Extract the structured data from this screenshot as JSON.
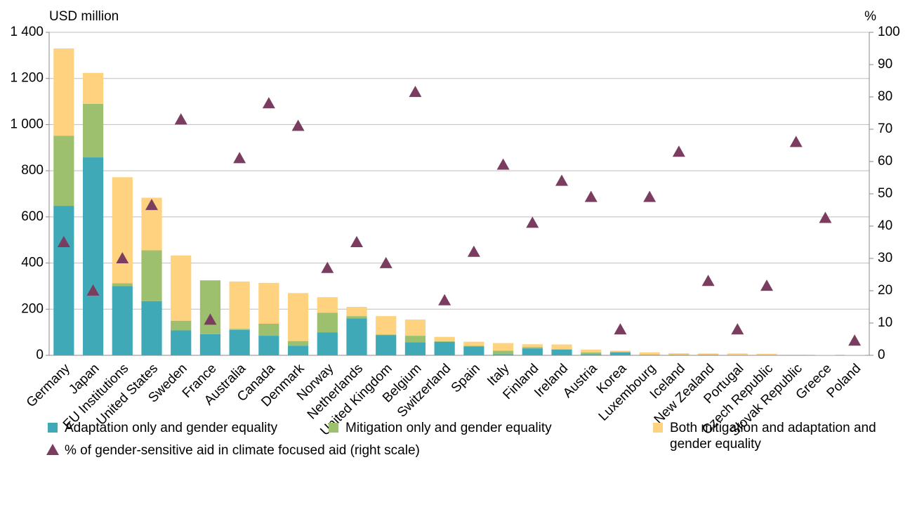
{
  "chart_data": {
    "type": "bar",
    "stacked": true,
    "ylabel": "USD million",
    "y2label": "%",
    "categories": [
      "Germany",
      "Japan",
      "EU Institutions",
      "United States",
      "Sweden",
      "France",
      "Australia",
      "Canada",
      "Denmark",
      "Norway",
      "Netherlands",
      "United Kingdom",
      "Belgium",
      "Switzerland",
      "Spain",
      "Italy",
      "Finland",
      "Ireland",
      "Austria",
      "Korea",
      "Luxembourg",
      "Iceland",
      "New Zealand",
      "Portugal",
      "Czech Republic",
      "Slovak Republic",
      "Greece",
      "Poland"
    ],
    "series": [
      {
        "name": "Adaptation only and gender equality",
        "color": "#3fa9b8",
        "values": [
          648,
          858,
          300,
          235,
          108,
          92,
          110,
          85,
          42,
          100,
          160,
          88,
          57,
          58,
          38,
          5,
          30,
          25,
          5,
          12,
          2,
          2,
          2,
          1,
          1,
          1,
          0,
          0
        ]
      },
      {
        "name": "Mitigation only and gender equality",
        "color": "#9cc06e",
        "values": [
          304,
          232,
          12,
          220,
          42,
          233,
          5,
          52,
          20,
          85,
          10,
          2,
          28,
          3,
          3,
          15,
          5,
          2,
          8,
          3,
          1,
          1,
          1,
          1,
          1,
          0,
          0,
          0
        ]
      },
      {
        "name": "Both mitigation and adaptation and gender equality",
        "color": "#fed27f",
        "values": [
          378,
          134,
          460,
          228,
          283,
          0,
          205,
          177,
          208,
          67,
          40,
          80,
          70,
          19,
          18,
          33,
          13,
          20,
          12,
          5,
          10,
          6,
          5,
          6,
          5,
          2,
          1,
          1
        ]
      },
      {
        "name": "% of gender-sensitive aid in climate focused aid (right scale)",
        "type": "scatter",
        "axis": "y2",
        "color": "#7a3d60",
        "values": [
          35,
          20,
          30,
          46.5,
          73,
          11,
          61,
          78,
          71,
          27,
          35,
          28.5,
          81.5,
          17,
          32,
          59,
          41,
          54,
          49,
          8,
          49,
          63,
          23,
          8,
          21.5,
          66,
          42.5,
          4.5
        ]
      }
    ],
    "ylim": [
      0,
      1400
    ],
    "yticks": [
      0,
      200,
      400,
      600,
      800,
      {
        "value": 1000,
        "label": "1 000"
      },
      {
        "value": 1200,
        "label": "1 200"
      },
      {
        "value": 1400,
        "label": "1 400"
      }
    ],
    "y2lim": [
      0,
      100
    ],
    "y2ticks": [
      0,
      10,
      20,
      30,
      40,
      50,
      60,
      70,
      80,
      90,
      100
    ],
    "grid": true
  }
}
